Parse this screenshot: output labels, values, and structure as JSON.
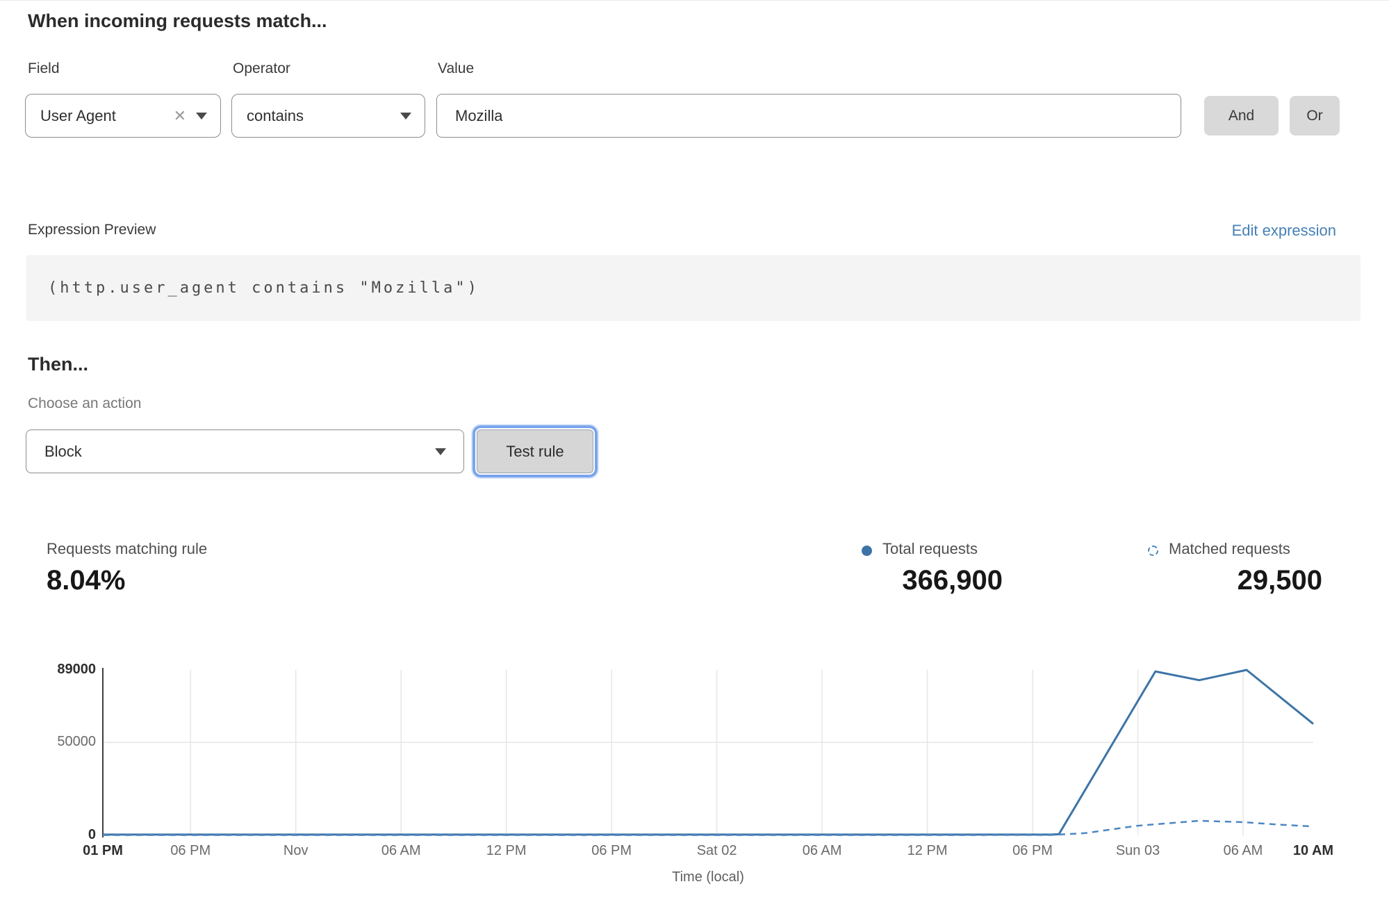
{
  "rule_builder": {
    "heading": "When incoming requests match...",
    "field": {
      "label": "Field",
      "value": "User Agent"
    },
    "operator": {
      "label": "Operator",
      "value": "contains"
    },
    "value": {
      "label": "Value",
      "value": "Mozilla"
    },
    "and_label": "And",
    "or_label": "Or"
  },
  "expression": {
    "label": "Expression Preview",
    "edit_link": "Edit expression",
    "code": "(http.user_agent contains \"Mozilla\")"
  },
  "action": {
    "heading": "Then...",
    "choose_label": "Choose an action",
    "selected_action": "Block",
    "test_button": "Test rule"
  },
  "stats": {
    "matching": {
      "label": "Requests matching rule",
      "value": "8.04%"
    },
    "total": {
      "label": "Total requests",
      "value": "366,900",
      "icon": "solid-dot",
      "color": "#3d74a6"
    },
    "matched": {
      "label": "Matched requests",
      "value": "29,500",
      "icon": "dashed-circle",
      "color": "#4d86c4"
    }
  },
  "chart_data": {
    "type": "line",
    "title": "",
    "xlabel": "Time (local)",
    "ylabel": "",
    "x_unit": "hours since Fri 01 PM",
    "x_range": [
      0,
      69
    ],
    "ylim": [
      0,
      89000
    ],
    "grid": true,
    "legend_position": "top-right-above-chart",
    "y_ticks": [
      {
        "value": 0,
        "label": "0",
        "bold": true
      },
      {
        "value": 50000,
        "label": "50000",
        "bold": false
      },
      {
        "value": 89000,
        "label": "89000",
        "bold": true
      }
    ],
    "x_ticks": [
      {
        "h": 0,
        "label": "01 PM",
        "bold": true
      },
      {
        "h": 5,
        "label": "06 PM",
        "bold": false
      },
      {
        "h": 11,
        "label": "Nov",
        "bold": false
      },
      {
        "h": 17,
        "label": "06 AM",
        "bold": false
      },
      {
        "h": 23,
        "label": "12 PM",
        "bold": false
      },
      {
        "h": 29,
        "label": "06 PM",
        "bold": false
      },
      {
        "h": 35,
        "label": "Sat 02",
        "bold": false
      },
      {
        "h": 41,
        "label": "06 AM",
        "bold": false
      },
      {
        "h": 47,
        "label": "12 PM",
        "bold": false
      },
      {
        "h": 53,
        "label": "06 PM",
        "bold": false
      },
      {
        "h": 59,
        "label": "Sun 03",
        "bold": false
      },
      {
        "h": 65,
        "label": "06 AM",
        "bold": false
      },
      {
        "h": 69,
        "label": "10 AM",
        "bold": true
      }
    ],
    "series": [
      {
        "name": "Total requests",
        "style": "solid",
        "color": "#3d74a6",
        "points": [
          [
            0,
            400
          ],
          [
            6,
            400
          ],
          [
            12,
            400
          ],
          [
            18,
            400
          ],
          [
            24,
            400
          ],
          [
            30,
            400
          ],
          [
            36,
            400
          ],
          [
            42,
            400
          ],
          [
            48,
            400
          ],
          [
            54,
            400
          ],
          [
            54.5,
            600
          ],
          [
            60,
            88200
          ],
          [
            62.5,
            83500
          ],
          [
            65.2,
            89000
          ],
          [
            69,
            60000
          ]
        ]
      },
      {
        "name": "Matched requests",
        "style": "dashed",
        "color": "#4d86c4",
        "points": [
          [
            0,
            150
          ],
          [
            6,
            150
          ],
          [
            12,
            150
          ],
          [
            18,
            150
          ],
          [
            24,
            150
          ],
          [
            30,
            150
          ],
          [
            36,
            150
          ],
          [
            42,
            150
          ],
          [
            48,
            150
          ],
          [
            54,
            200
          ],
          [
            56,
            1200
          ],
          [
            59,
            5200
          ],
          [
            62.5,
            7850
          ],
          [
            65,
            7100
          ],
          [
            67,
            5800
          ],
          [
            69,
            4800
          ]
        ]
      }
    ]
  }
}
